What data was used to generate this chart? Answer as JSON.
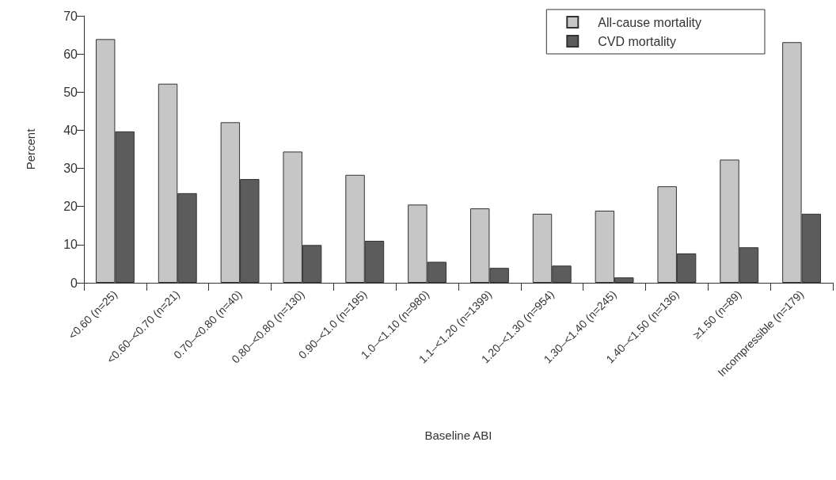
{
  "chart_data": {
    "type": "bar",
    "xlabel": "Baseline ABI",
    "ylabel": "Percent",
    "categories": [
      "<0.60 (n=25)",
      "<0.60–<0.70 (n=21)",
      "0.70–<0.80 (n=40)",
      "0.80–<0.80 (n=130)",
      "0.90–<1.0 (n=195)",
      "1.0–<1.10 (n=980)",
      "1.1–<1.20 (n=1399)",
      "1.20–<1.30 (n=954)",
      "1.30–<1.40 (n=245)",
      "1.40–<1.50 (n=136)",
      "≥1.50 (n=89)",
      "Incompressible (n=179)"
    ],
    "series": [
      {
        "name": "All-cause mortality",
        "color": "#c6c6c6",
        "values": [
          63.9,
          52.2,
          42.1,
          34.4,
          28.3,
          20.5,
          19.5,
          18.1,
          18.9,
          25.3,
          32.3,
          63.1
        ]
      },
      {
        "name": "CVD mortality",
        "color": "#5c5c5c",
        "values": [
          39.7,
          23.5,
          27.2,
          9.9,
          11.0,
          5.5,
          3.9,
          4.5,
          1.4,
          7.7,
          9.3,
          18.1
        ]
      }
    ],
    "ylim": [
      0,
      70
    ],
    "yticks": [
      0,
      10,
      20,
      30,
      40,
      50,
      60,
      70
    ],
    "grid": false,
    "legend": "top right"
  }
}
